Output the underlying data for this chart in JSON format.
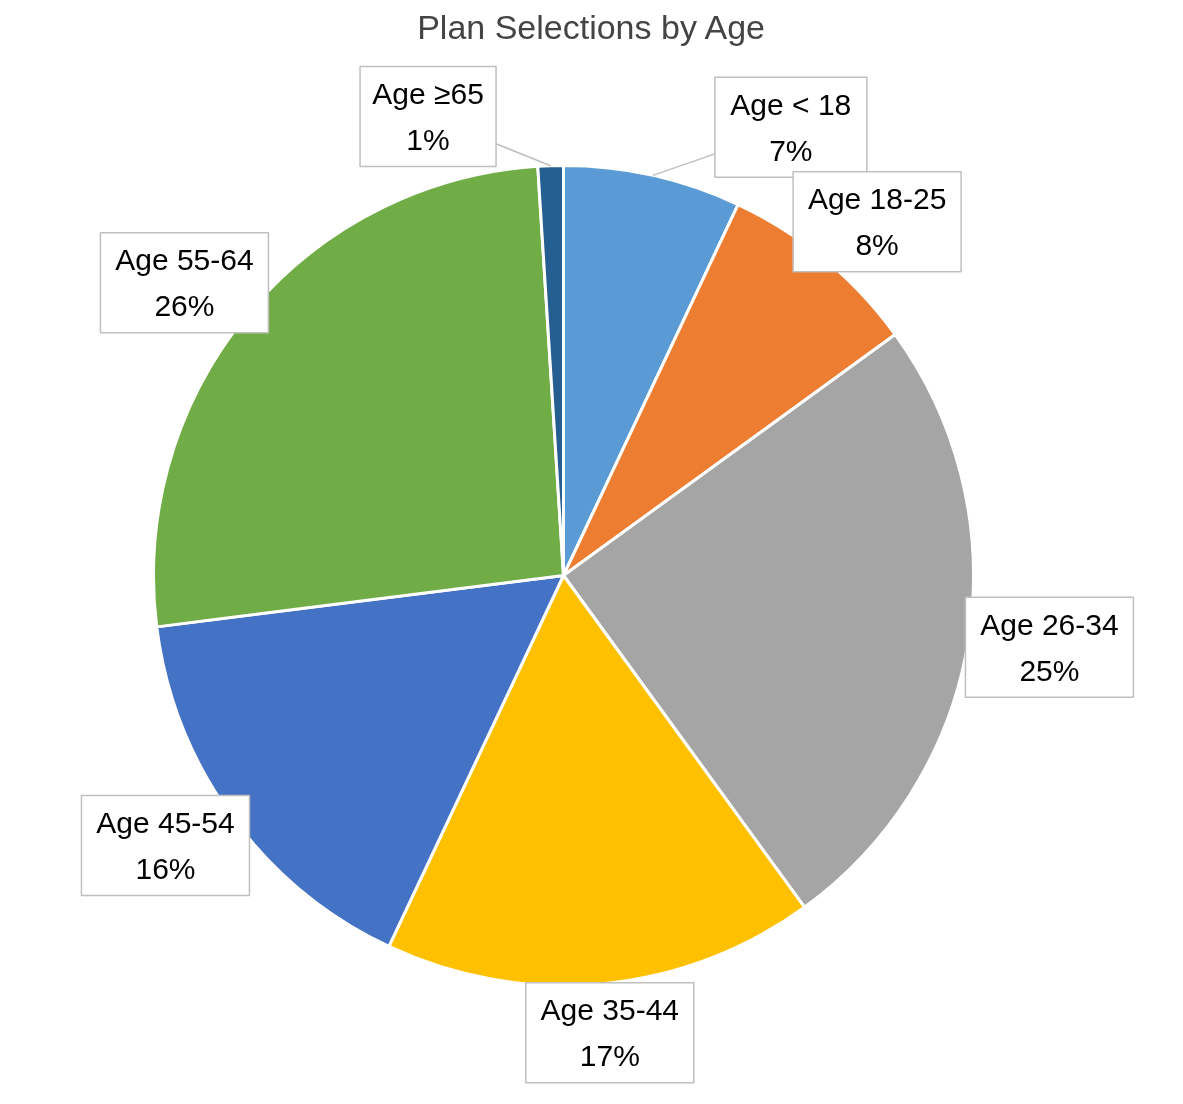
{
  "chart_data": {
    "type": "pie",
    "title": "Plan Selections by Age",
    "categories": [
      "Age < 18",
      "Age 18-25",
      "Age 26-34",
      "Age 35-44",
      "Age 45-54",
      "Age 55-64",
      "Age ≥65"
    ],
    "values": [
      7,
      8,
      25,
      17,
      16,
      26,
      1
    ],
    "value_labels": [
      "7%",
      "8%",
      "25%",
      "17%",
      "16%",
      "26%",
      "1%"
    ],
    "colors": [
      "#5b9bd5",
      "#ed7d31",
      "#a5a5a5",
      "#ffc000",
      "#4472c4",
      "#70ad47",
      "#255e91"
    ]
  }
}
